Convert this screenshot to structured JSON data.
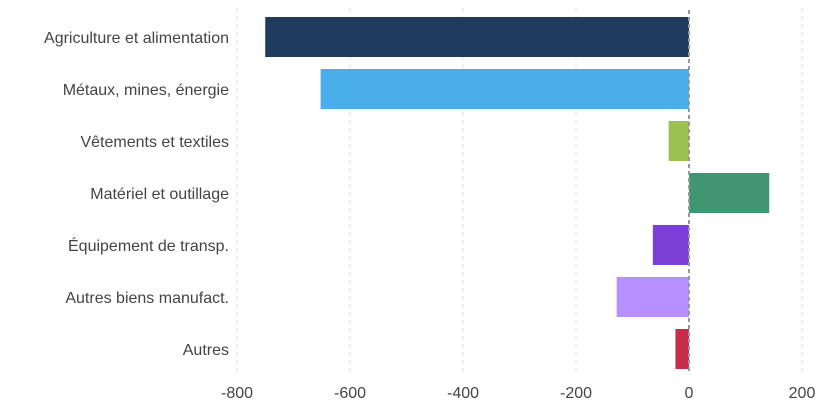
{
  "chart_data": {
    "type": "bar",
    "orientation": "horizontal",
    "title": "",
    "xlabel": "",
    "ylabel": "",
    "categories": [
      "Agriculture et alimentation",
      "Métaux, mines, énergie",
      "Vêtements et textiles",
      "Matériel et outillage",
      "Équipement de transp.",
      "Autres biens manufact.",
      "Autres"
    ],
    "values": [
      -750,
      -652,
      -36,
      142,
      -64,
      -128,
      -24
    ],
    "colors": [
      "#1f3b5e",
      "#4aaeea",
      "#9cc153",
      "#419671",
      "#7b3fd6",
      "#b690ff",
      "#c72c48"
    ],
    "xlim": [
      -800,
      200
    ],
    "xticks": [
      "-800",
      "-600",
      "-400",
      "-200",
      "0",
      "200"
    ],
    "grid": true,
    "legend": "none"
  }
}
